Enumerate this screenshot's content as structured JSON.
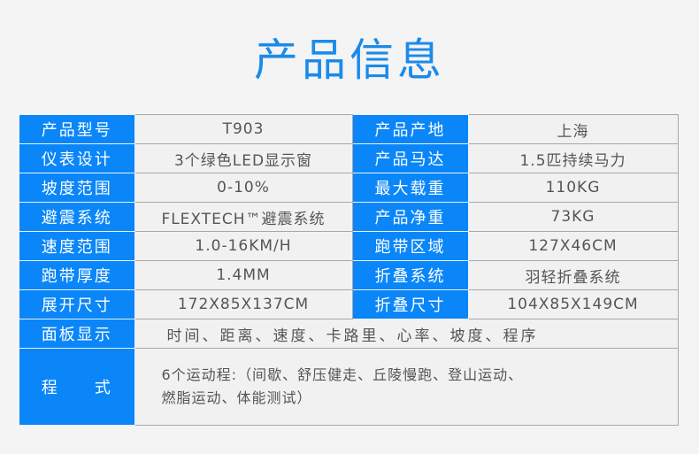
{
  "title": "产品信息",
  "rows": [
    {
      "l1": "产品型号",
      "v1": "T903",
      "l2": "产品产地",
      "v2": "上海"
    },
    {
      "l1": "仪表设计",
      "v1": "3个绿色LED显示窗",
      "l2": "产品马达",
      "v2": "1.5匹持续马力"
    },
    {
      "l1": "坡度范围",
      "v1": "0-10%",
      "l2": "最大载重",
      "v2": "110KG"
    },
    {
      "l1": "避震系统",
      "v1": "FLEXTECH™避震系统",
      "l2": "产品净重",
      "v2": "73KG"
    },
    {
      "l1": "速度范围",
      "v1": "1.0-16KM/H",
      "l2": "跑带区域",
      "v2": "127X46CM"
    },
    {
      "l1": "跑带厚度",
      "v1": "1.4MM",
      "l2": "折叠系统",
      "v2": "羽轻折叠系统"
    },
    {
      "l1": "展开尺寸",
      "v1": "172X85X137CM",
      "l2": "折叠尺寸",
      "v2": "104X85X149CM"
    }
  ],
  "panel": {
    "label": "面板显示",
    "value": "时间、距离、速度、卡路里、心率、坡度、程序"
  },
  "program": {
    "label": "程　　式",
    "line1": "6个运动程:（间歇、舒压健走、丘陵慢跑、登山运动、",
    "line2": "燃脂运动、体能测试）"
  }
}
